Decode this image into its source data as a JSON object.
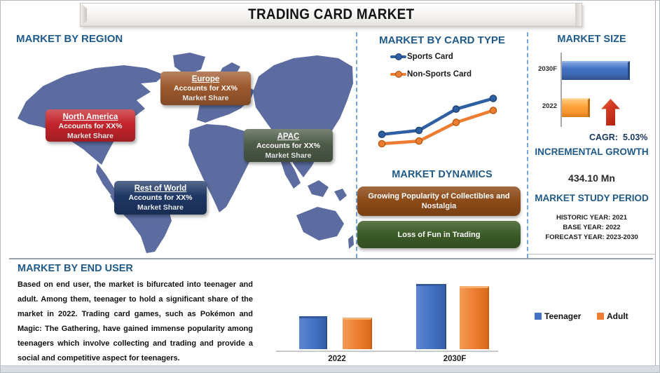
{
  "title": "TRADING CARD MARKET",
  "colors": {
    "heading_blue": "#1F5A8A",
    "map": "#5C6CA0",
    "na_box": "#C4242B",
    "europe_box": "#9E5A2E",
    "apac_box": "#4D5B48",
    "rest_of_world_box": "#1E3765",
    "driver_banner": "#8C4A17",
    "restraint_banner": "#3B5B27",
    "arrow_red": "#C02A1E"
  },
  "regions": {
    "heading": "MARKET BY REGION",
    "items": [
      {
        "name": "North America",
        "line1": "Accounts for XX%",
        "line2": "Market Share"
      },
      {
        "name": "Europe",
        "line1": "Accounts for XX%",
        "line2": "Market Share"
      },
      {
        "name": "APAC",
        "line1": "Accounts for XX%",
        "line2": "Market Share"
      },
      {
        "name": "Rest of World",
        "line1": "Accounts for XX%",
        "line2": "Market Share"
      }
    ]
  },
  "card_type": {
    "heading": "MARKET BY CARD TYPE"
  },
  "dynamics": {
    "heading": "MARKET DYNAMICS",
    "items": [
      {
        "label": "Growing Popularity of Collectibles and Nostalgia"
      },
      {
        "label": "Loss of Fun in Trading"
      }
    ]
  },
  "market_size": {
    "heading": "MARKET SIZE",
    "cagr_label": "CAGR:",
    "cagr_value": "5.03%",
    "incremental_heading": "INCREMENTAL GROWTH",
    "incremental_value": "434.10 Mn",
    "study_period_heading": "MARKET STUDY PERIOD",
    "historic_year": "HISTORIC YEAR: 2021",
    "base_year": "BASE YEAR: 2022",
    "forecast_year": "FORECAST YEAR: 2023-2030"
  },
  "end_user": {
    "heading": "MARKET BY END USER",
    "paragraph": "Based on end user, the market is bifurcated into teenager and adult. Among them, teenager to hold a significant share of the market in 2022. Trading card games, such as Pokémon and Magic: The Gathering, have gained immense popularity among teenagers which involve collecting and trading and provide a social and competitive aspect for teenagers."
  },
  "chart_data": [
    {
      "id": "card-type-trend",
      "type": "line",
      "title": "MARKET BY CARD TYPE",
      "x": [
        1,
        2,
        3,
        4
      ],
      "xlabel": "",
      "ylabel": "",
      "axes_visible": false,
      "legend_position": "top-left",
      "series": [
        {
          "name": "Sports Card",
          "color": "#2E5FA3",
          "marker_stroke": "#1F4470",
          "values": [
            34,
            40,
            72,
            88
          ]
        },
        {
          "name": "Non-Sports Card",
          "color": "#ED7D31",
          "marker_stroke": "#B85C14",
          "values": [
            20,
            24,
            52,
            70
          ]
        }
      ],
      "note": "values estimated on relative 0-100 scale; axes and tick labels not shown in figure"
    },
    {
      "id": "market-size",
      "type": "bar",
      "orientation": "horizontal",
      "title": "MARKET SIZE",
      "categories": [
        "2030F",
        "2022"
      ],
      "values": [
        97,
        40
      ],
      "colors": [
        "#4472C4",
        "#FFA23E"
      ],
      "cagr": "5.03%",
      "note": "relative bar lengths 0-100; numeric axis not shown in figure"
    },
    {
      "id": "end-user",
      "type": "bar",
      "title": "MARKET BY END USER",
      "categories": [
        "2022",
        "2030F"
      ],
      "series": [
        {
          "name": "Teenager",
          "color": "#4472C4",
          "values": [
            47,
            93
          ]
        },
        {
          "name": "Adult",
          "color": "#ED7D31",
          "values": [
            45,
            90
          ]
        }
      ],
      "legend_position": "right",
      "note": "relative bar heights 0-100; y-axis not shown in figure"
    }
  ]
}
